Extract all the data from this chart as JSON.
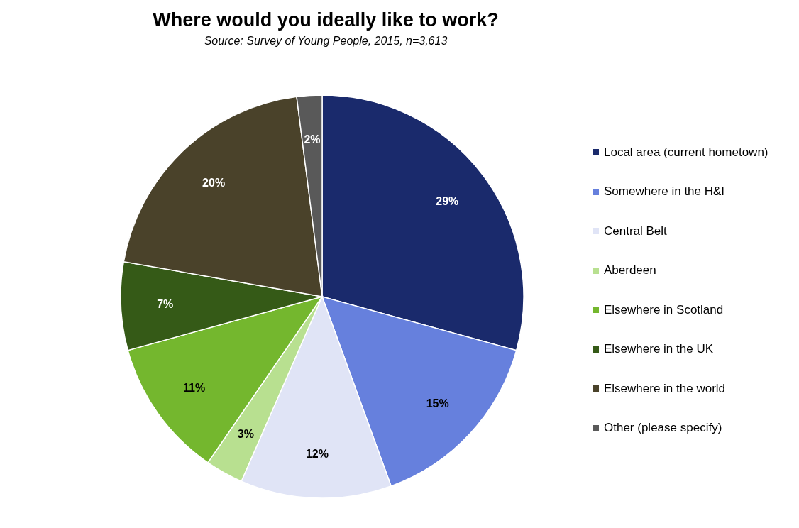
{
  "chart_data": {
    "type": "pie",
    "title": "Where would you ideally like to work?",
    "subtitle": "Source: Survey of Young People, 2015, n=3,613",
    "categories": [
      "Local area (current hometown)",
      "Somewhere in the H&I",
      "Central Belt",
      "Aberdeen",
      "Elsewhere in Scotland",
      "Elsewhere in the UK",
      "Elsewhere in the world",
      "Other (please specify)"
    ],
    "values": [
      29,
      15,
      12,
      3,
      11,
      7,
      20,
      2
    ],
    "value_labels": [
      "29%",
      "15%",
      "12%",
      "3%",
      "11%",
      "7%",
      "20%",
      "2%"
    ],
    "colors": [
      "#1a2a6c",
      "#6680dd",
      "#e0e4f6",
      "#b8e090",
      "#74b72e",
      "#355a17",
      "#4a422a",
      "#595959"
    ],
    "legend": "right"
  }
}
